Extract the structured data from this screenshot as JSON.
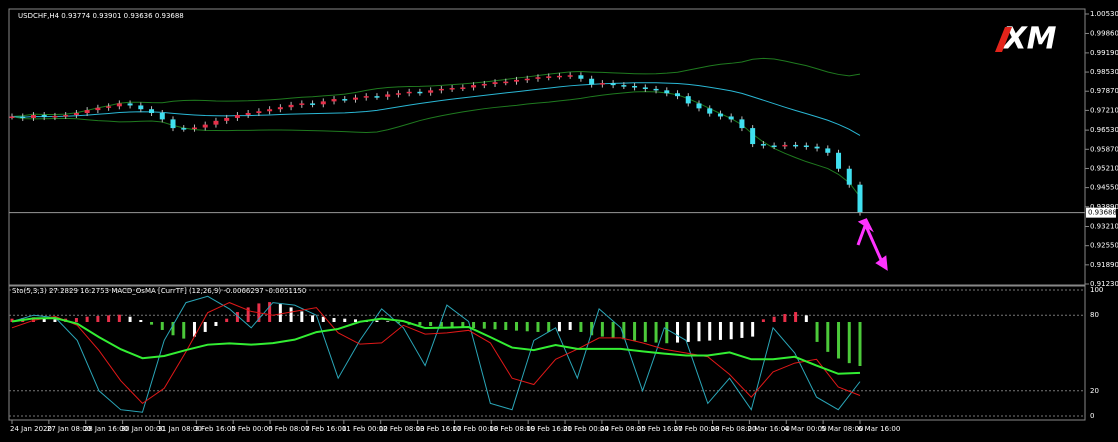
{
  "chart_data": {
    "type": "candlestick",
    "title": "USDCHF,H4 0.93774 0.93901 0.93636 0.93688",
    "logo": "XM",
    "last_price": {
      "value": 0.93688,
      "label": "0.93688"
    },
    "close": [
      0.97,
      0.9695,
      0.9705,
      0.9698,
      0.9702,
      0.9705,
      0.9712,
      0.9722,
      0.973,
      0.9735,
      0.9745,
      0.9738,
      0.9725,
      0.9712,
      0.969,
      0.966,
      0.9658,
      0.9662,
      0.9672,
      0.9685,
      0.9695,
      0.9705,
      0.9712,
      0.9718,
      0.9725,
      0.9732,
      0.974,
      0.9745,
      0.9742,
      0.9752,
      0.976,
      0.9758,
      0.9765,
      0.977,
      0.9768,
      0.9776,
      0.978,
      0.9785,
      0.9782,
      0.979,
      0.9795,
      0.9798,
      0.98,
      0.9808,
      0.9812,
      0.9818,
      0.982,
      0.9826,
      0.983,
      0.9835,
      0.9838,
      0.984,
      0.9842,
      0.983,
      0.981,
      0.9815,
      0.9808,
      0.9805,
      0.98,
      0.9795,
      0.979,
      0.978,
      0.977,
      0.9745,
      0.9728,
      0.971,
      0.97,
      0.969,
      0.966,
      0.9605,
      0.96,
      0.9598,
      0.9602,
      0.96,
      0.9596,
      0.959,
      0.9575,
      0.952,
      0.9465,
      0.93688
    ],
    "ylim": [
      0.9123,
      1.0053
    ],
    "yticks": [
      {
        "value": 1.0053,
        "label": "1.00530"
      },
      {
        "value": 0.9986,
        "label": "0.99860"
      },
      {
        "value": 0.9919,
        "label": "0.99190"
      },
      {
        "value": 0.9853,
        "label": "0.98530"
      },
      {
        "value": 0.9787,
        "label": "0.97870"
      },
      {
        "value": 0.9721,
        "label": "0.97210"
      },
      {
        "value": 0.9653,
        "label": "0.96530"
      },
      {
        "value": 0.9587,
        "label": "0.95870"
      },
      {
        "value": 0.9521,
        "label": "0.95210"
      },
      {
        "value": 0.9455,
        "label": "0.94550"
      },
      {
        "value": 0.9389,
        "label": "0.93890"
      },
      {
        "value": 0.9321,
        "label": "0.93210"
      },
      {
        "value": 0.9255,
        "label": "0.92550"
      },
      {
        "value": 0.9189,
        "label": "0.91890"
      },
      {
        "value": 0.9123,
        "label": "0.91230"
      }
    ],
    "x_labels": [
      "24 Jan 2020",
      "27 Jan 08:00",
      "28 Jan 16:00",
      "30 Jan 00:00",
      "31 Jan 08:00",
      "3 Feb 16:00",
      "5 Feb 00:00",
      "6 Feb 08:00",
      "7 Feb 16:00",
      "11 Feb 00:00",
      "12 Feb 08:00",
      "13 Feb 16:00",
      "17 Feb 00:00",
      "18 Feb 08:00",
      "19 Feb 16:00",
      "21 Feb 00:00",
      "24 Feb 08:00",
      "25 Feb 16:00",
      "27 Feb 00:00",
      "28 Feb 08:00",
      "2 Mar 16:00",
      "4 Mar 00:00",
      "5 Mar 08:00",
      "6 Mar 16:00"
    ],
    "indicator": {
      "title": "Sto(5,3,3) 27.2829 16.2753 MACD_OsMA [CurrTF] (12,26,9) -0.0066297 -0.0051150",
      "ylim": [
        0,
        100
      ],
      "yticks": [
        100,
        80,
        20,
        0
      ],
      "stoch_main": [
        75,
        80,
        78,
        60,
        20,
        5,
        3,
        60,
        90,
        95,
        85,
        70,
        90,
        88,
        80,
        30,
        60,
        85,
        70,
        40,
        88,
        75,
        10,
        5,
        60,
        70,
        30,
        85,
        70,
        20,
        70,
        60,
        10,
        30,
        5,
        70,
        50,
        15,
        5,
        27.2829
      ],
      "stoch_signal": [
        70,
        76,
        79,
        72,
        52,
        28,
        10,
        22,
        51,
        82,
        90,
        83,
        80,
        83,
        86,
        66,
        57,
        58,
        72,
        65,
        66,
        68,
        58,
        30,
        25,
        45,
        53,
        62,
        62,
        58,
        53,
        50,
        47,
        33,
        15,
        35,
        42,
        45,
        23,
        16.2753
      ],
      "osma": [
        0.0005,
        0.0006,
        0.0007,
        0.0006,
        0.0004,
        0.0005,
        0.0006,
        0.0008,
        0.0009,
        0.001,
        0.0011,
        0.0008,
        0.0003,
        -0.0004,
        -0.0012,
        -0.002,
        -0.0025,
        -0.0022,
        -0.0015,
        -0.0006,
        0.0005,
        0.0015,
        0.0022,
        0.0028,
        0.003,
        0.0027,
        0.0022,
        0.0016,
        0.001,
        0.0008,
        0.0006,
        0.0005,
        0.0004,
        0.0003,
        0.0002,
        0.0001,
        -0.0002,
        -0.0004,
        -0.0005,
        -0.0006,
        -0.0007,
        -0.0008,
        -0.0008,
        -0.0009,
        -0.001,
        -0.0011,
        -0.0012,
        -0.0013,
        -0.0014,
        -0.0015,
        -0.0015,
        -0.0014,
        -0.0012,
        -0.0015,
        -0.002,
        -0.0022,
        -0.0024,
        -0.0026,
        -0.0028,
        -0.003,
        -0.0031,
        -0.0032,
        -0.0031,
        -0.003,
        -0.0029,
        -0.0028,
        -0.0027,
        -0.0026,
        -0.0024,
        -0.0022,
        0.0004,
        0.0008,
        0.0012,
        0.0015,
        0.001,
        -0.003,
        -0.0045,
        -0.0055,
        -0.0062,
        -0.0066297
      ]
    }
  }
}
